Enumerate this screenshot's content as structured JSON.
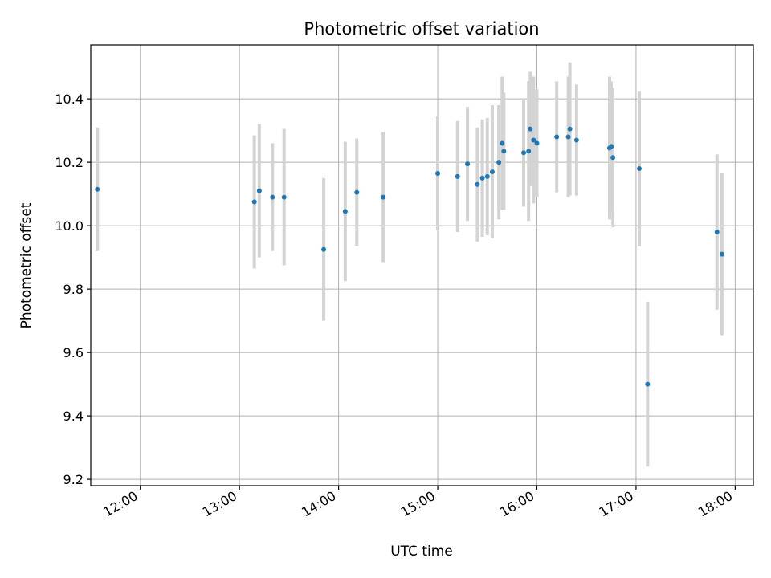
{
  "chart_data": {
    "type": "scatter",
    "title": "Photometric offset variation",
    "xlabel": "UTC time",
    "ylabel": "Photometric offset",
    "x_format": "time HH:MM",
    "x_ticks": [
      "12:00",
      "13:00",
      "14:00",
      "15:00",
      "16:00",
      "17:00",
      "18:00"
    ],
    "y_ticks": [
      "9.2",
      "9.4",
      "9.6",
      "9.8",
      "10.0",
      "10.2",
      "10.4"
    ],
    "xlim": [
      "11:30",
      "18:11"
    ],
    "ylim": [
      9.18,
      10.57
    ],
    "grid": true,
    "marker_color": "#1f77b4",
    "errorbar_color": "#d3d3d3",
    "series": [
      {
        "points": [
          {
            "x": "11:34",
            "y": 10.115,
            "err": 0.195
          },
          {
            "x": "13:09",
            "y": 10.075,
            "err": 0.21
          },
          {
            "x": "13:12",
            "y": 10.11,
            "err": 0.21
          },
          {
            "x": "13:20",
            "y": 10.09,
            "err": 0.17
          },
          {
            "x": "13:27",
            "y": 10.09,
            "err": 0.215
          },
          {
            "x": "13:51",
            "y": 9.925,
            "err": 0.225
          },
          {
            "x": "14:04",
            "y": 10.045,
            "err": 0.22
          },
          {
            "x": "14:11",
            "y": 10.105,
            "err": 0.17
          },
          {
            "x": "14:27",
            "y": 10.09,
            "err": 0.205
          },
          {
            "x": "15:00",
            "y": 10.165,
            "err": 0.18
          },
          {
            "x": "15:12",
            "y": 10.155,
            "err": 0.175
          },
          {
            "x": "15:18",
            "y": 10.195,
            "err": 0.18
          },
          {
            "x": "15:24",
            "y": 10.13,
            "err": 0.18
          },
          {
            "x": "15:27",
            "y": 10.15,
            "err": 0.185
          },
          {
            "x": "15:30",
            "y": 10.155,
            "err": 0.185
          },
          {
            "x": "15:33",
            "y": 10.17,
            "err": 0.21
          },
          {
            "x": "15:37",
            "y": 10.2,
            "err": 0.18
          },
          {
            "x": "15:39",
            "y": 10.26,
            "err": 0.21
          },
          {
            "x": "15:40",
            "y": 10.235,
            "err": 0.185
          },
          {
            "x": "15:52",
            "y": 10.23,
            "err": 0.17
          },
          {
            "x": "15:55",
            "y": 10.235,
            "err": 0.22
          },
          {
            "x": "15:56",
            "y": 10.305,
            "err": 0.18
          },
          {
            "x": "15:58",
            "y": 10.27,
            "err": 0.2
          },
          {
            "x": "16:00",
            "y": 10.26,
            "err": 0.17
          },
          {
            "x": "16:12",
            "y": 10.28,
            "err": 0.175
          },
          {
            "x": "16:19",
            "y": 10.28,
            "err": 0.19
          },
          {
            "x": "16:20",
            "y": 10.305,
            "err": 0.21
          },
          {
            "x": "16:24",
            "y": 10.27,
            "err": 0.175
          },
          {
            "x": "16:44",
            "y": 10.245,
            "err": 0.225
          },
          {
            "x": "16:45",
            "y": 10.25,
            "err": 0.205
          },
          {
            "x": "16:46",
            "y": 10.215,
            "err": 0.22
          },
          {
            "x": "17:02",
            "y": 10.18,
            "err": 0.245
          },
          {
            "x": "17:07",
            "y": 9.5,
            "err": 0.26
          },
          {
            "x": "17:49",
            "y": 9.98,
            "err": 0.245
          },
          {
            "x": "17:52",
            "y": 9.91,
            "err": 0.255
          }
        ]
      }
    ]
  }
}
